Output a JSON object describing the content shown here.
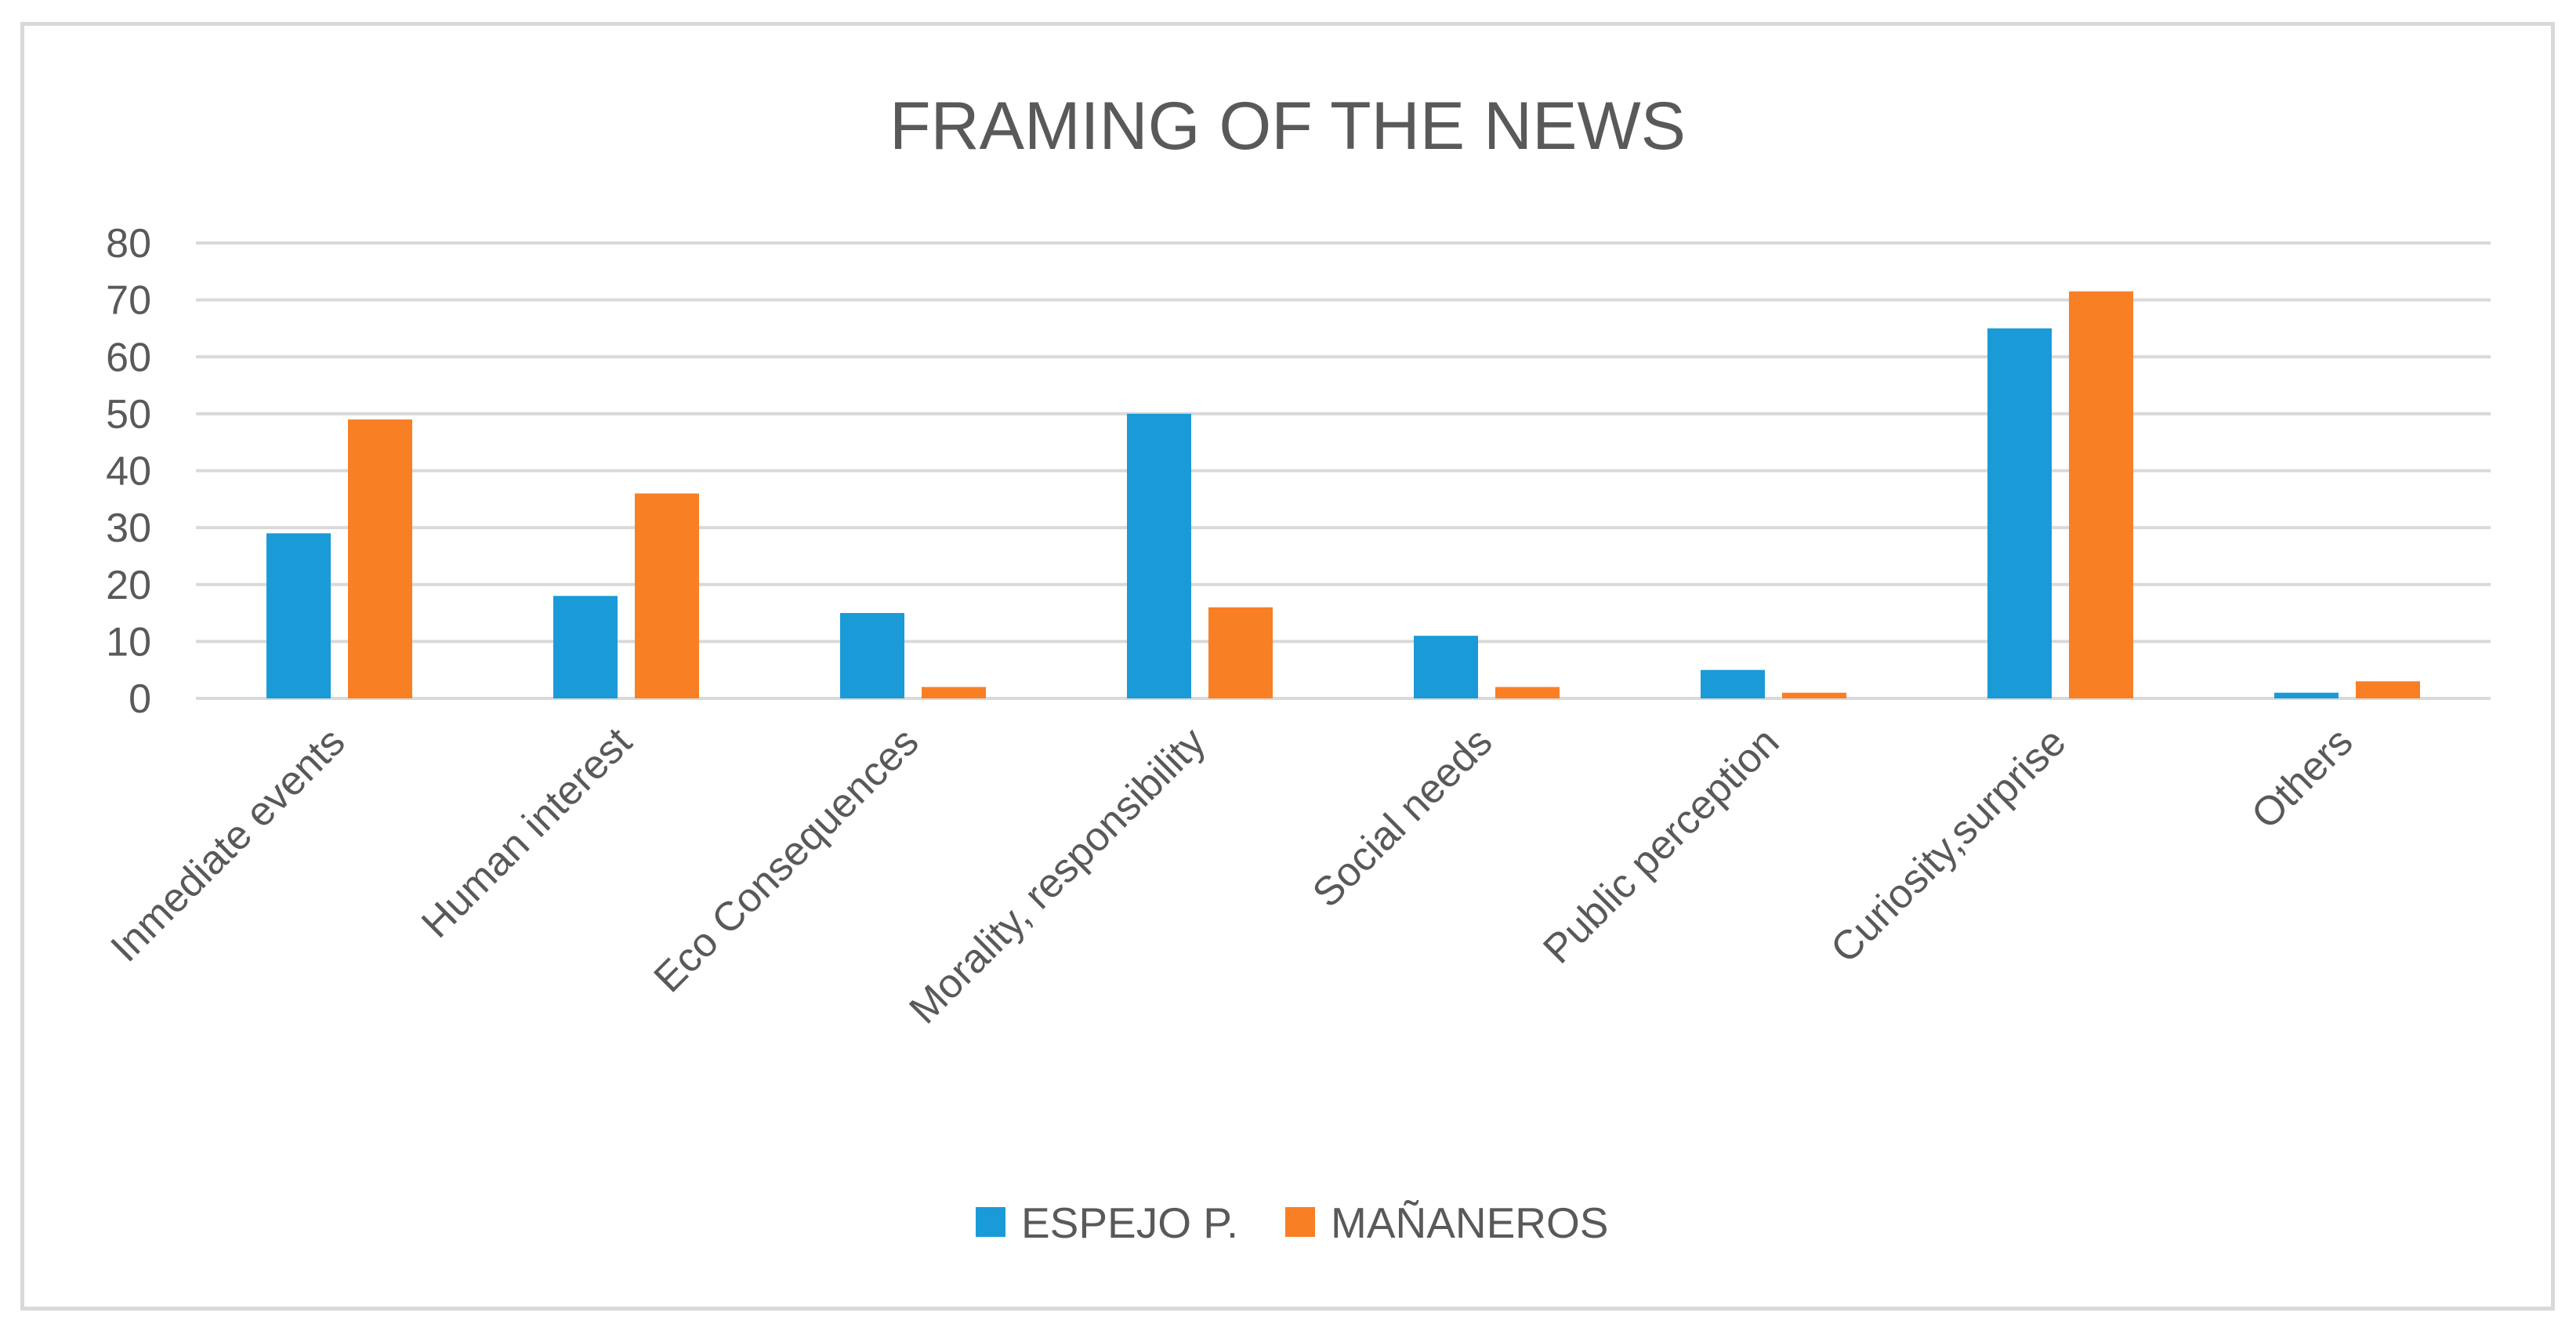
{
  "chart_data": {
    "type": "bar",
    "title": "FRAMING OF THE NEWS",
    "xlabel": "",
    "ylabel": "",
    "ylim": [
      0,
      80
    ],
    "yticks": [
      0,
      10,
      20,
      30,
      40,
      50,
      60,
      70,
      80
    ],
    "grid": true,
    "legend_position": "bottom",
    "categories": [
      "Inmediate events",
      "Human interest",
      "Eco Consequences",
      "Morality, responsibility",
      "Social needs",
      "Public perception",
      "Curiosity,surprise",
      "Others"
    ],
    "series": [
      {
        "name": "ESPEJO P.",
        "color": "#1a9bd7",
        "values": [
          29,
          18,
          15,
          50,
          11,
          5,
          65,
          1
        ]
      },
      {
        "name": "MAÑANEROS",
        "color": "#f97f25",
        "values": [
          49,
          36,
          2,
          16,
          2,
          1,
          71.5,
          3
        ]
      }
    ]
  }
}
